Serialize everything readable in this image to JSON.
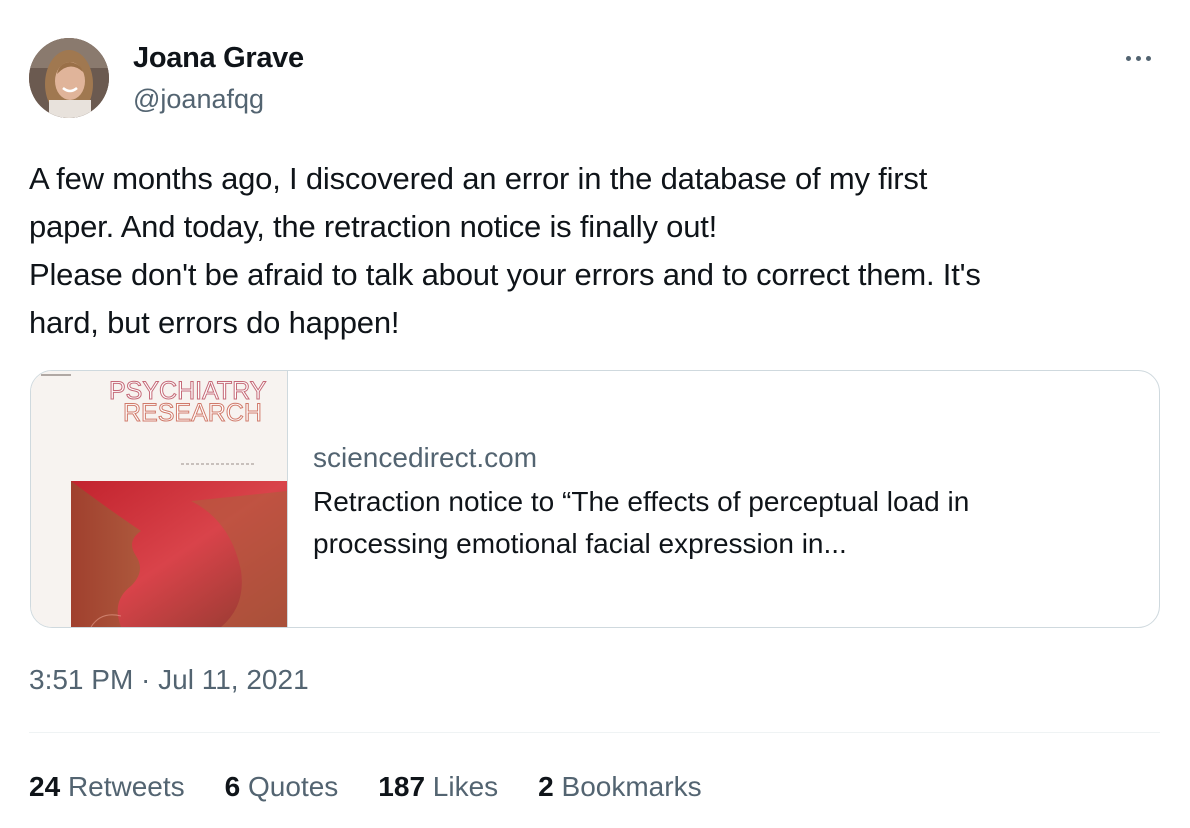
{
  "author": {
    "name": "Joana Grave",
    "handle": "@joanafqg"
  },
  "tweet": {
    "text_lines": [
      "A few months ago, I discovered an error in the database of my first",
      "paper. And today, the retraction notice is finally out!",
      "Please don't be afraid to talk about your errors and to correct them. It's",
      "hard, but errors do happen!"
    ],
    "timestamp": "3:51 PM · Jul 11, 2021"
  },
  "card": {
    "image_journal_line1": "PSYCHIATRY",
    "image_journal_line2": "RESEARCH",
    "domain": "sciencedirect.com",
    "title_lines": [
      "Retraction notice to “The effects of perceptual load in",
      "processing emotional facial expression in..."
    ]
  },
  "stats": {
    "retweets": {
      "count": "24",
      "label": "Retweets"
    },
    "quotes": {
      "count": "6",
      "label": "Quotes"
    },
    "likes": {
      "count": "187",
      "label": "Likes"
    },
    "bookmarks": {
      "count": "2",
      "label": "Bookmarks"
    }
  },
  "icons": {
    "more": "more-horizontal-icon"
  },
  "colors": {
    "text_primary": "#0f1419",
    "text_secondary": "#536471",
    "border": "#cfd9de",
    "journal_title": "#c25a6a"
  }
}
